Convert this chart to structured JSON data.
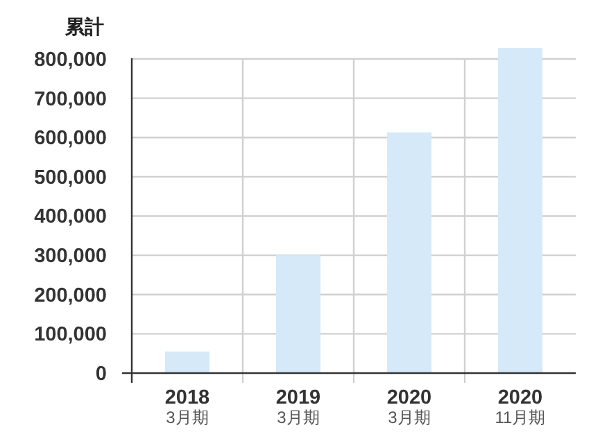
{
  "chart_data": {
    "type": "bar",
    "title": "累計",
    "categories": [
      "2018\n3月期",
      "2019\n3月期",
      "2020\n3月期",
      "2020\n11月期"
    ],
    "values": [
      55000,
      300000,
      613000,
      828000
    ],
    "color": "#d6e9f8",
    "ylim": [
      0,
      830000
    ],
    "yticks": [
      0,
      {
        "value": 100000,
        "label": "100,000"
      },
      {
        "value": 200000,
        "label": "200,000"
      },
      {
        "value": 300000,
        "label": "300,000"
      },
      {
        "value": 400000,
        "label": "400,000"
      },
      {
        "value": 500000,
        "label": "500,000"
      },
      {
        "value": 600000,
        "label": "600,000"
      },
      {
        "value": 700000,
        "label": "700,000"
      },
      {
        "value": 800000,
        "label": "800,000"
      }
    ],
    "grid": true
  }
}
